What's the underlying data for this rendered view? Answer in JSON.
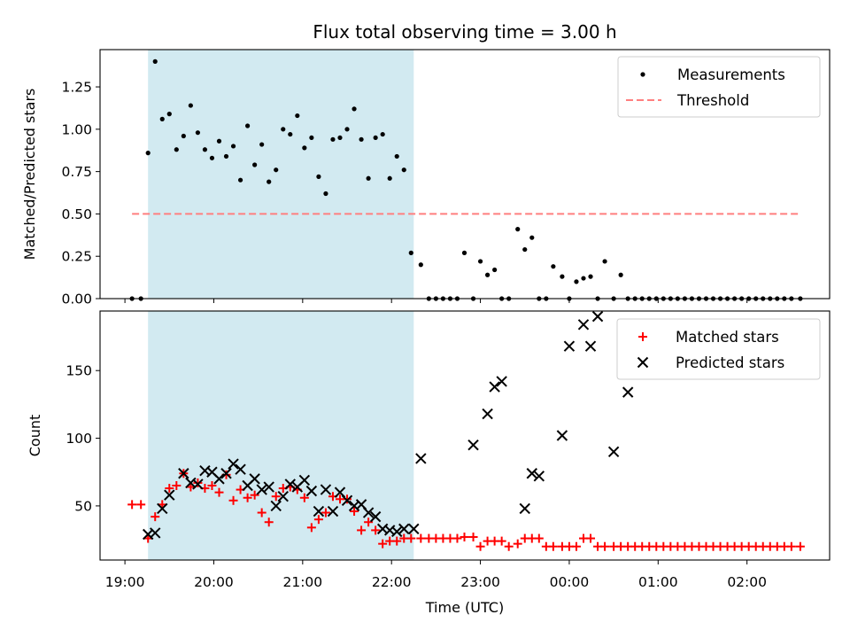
{
  "colors": {
    "measurement": "#000000",
    "threshold": "#ff7f7f",
    "matched": "#ff0000",
    "predicted": "#000000",
    "observing_window": "#add8e6"
  },
  "chart_data": [
    {
      "type": "scatter",
      "title": "Flux total observing time = 3.00 h",
      "xlabel": "",
      "ylabel": "Matched/Predicted stars",
      "ylim": [
        0,
        1.47
      ],
      "yticks": [
        "0.00",
        "0.25",
        "0.50",
        "0.75",
        "1.00",
        "1.25"
      ],
      "xlim": [
        -0.28,
        7.93
      ],
      "legend": {
        "placement": "top-right",
        "entries": [
          "Measurements",
          "Threshold"
        ]
      },
      "shaded_region": {
        "x": [
          0.26,
          3.25
        ]
      },
      "threshold": {
        "name": "Threshold",
        "y": 0.5,
        "x": [
          0.08,
          7.6
        ]
      },
      "series": [
        {
          "name": "Measurements",
          "x": [
            0.08,
            0.18,
            0.26,
            0.34,
            0.42,
            0.5,
            0.58,
            0.66,
            0.74,
            0.82,
            0.9,
            0.98,
            1.06,
            1.14,
            1.22,
            1.3,
            1.38,
            1.46,
            1.54,
            1.62,
            1.7,
            1.78,
            1.86,
            1.94,
            2.02,
            2.1,
            2.18,
            2.26,
            2.34,
            2.42,
            2.5,
            2.58,
            2.66,
            2.74,
            2.82,
            2.9,
            2.98,
            3.06,
            3.14,
            3.22,
            3.33,
            3.42,
            3.5,
            3.58,
            3.66,
            3.74,
            3.82,
            3.92,
            4.0,
            4.08,
            4.16,
            4.24,
            4.32,
            4.42,
            4.5,
            4.58,
            4.66,
            4.74,
            4.82,
            4.92,
            5.0,
            5.08,
            5.16,
            5.24,
            5.32,
            5.4,
            5.5,
            5.58,
            5.66,
            5.74,
            5.82,
            5.9,
            5.98,
            6.06,
            6.14,
            6.22,
            6.3,
            6.38,
            6.46,
            6.54,
            6.62,
            6.7,
            6.78,
            6.86,
            6.94,
            7.02,
            7.1,
            7.18,
            7.26,
            7.34,
            7.42,
            7.5,
            7.6
          ],
          "y": [
            0,
            0,
            0.86,
            1.4,
            1.06,
            1.09,
            0.88,
            0.96,
            1.14,
            0.98,
            0.88,
            0.83,
            0.93,
            0.84,
            0.9,
            0.7,
            1.02,
            0.79,
            0.91,
            0.69,
            0.76,
            1.0,
            0.97,
            1.08,
            0.89,
            0.95,
            0.72,
            0.62,
            0.94,
            0.95,
            1.0,
            1.12,
            0.94,
            0.71,
            0.95,
            0.97,
            0.71,
            0.84,
            0.76,
            0.27,
            0.2,
            0,
            0,
            0,
            0,
            0,
            0.27,
            0,
            0.22,
            0.14,
            0.17,
            0,
            0,
            0.41,
            0.29,
            0.36,
            0,
            0,
            0.19,
            0.13,
            0,
            0.1,
            0.12,
            0.13,
            0,
            0.22,
            0,
            0.14,
            0,
            0,
            0,
            0,
            0,
            0,
            0,
            0,
            0,
            0,
            0,
            0,
            0,
            0,
            0,
            0,
            0,
            0,
            0,
            0,
            0,
            0,
            0,
            0,
            0
          ]
        }
      ]
    },
    {
      "type": "scatter",
      "title": "",
      "xlabel": "Time (UTC)",
      "ylabel": "Count",
      "ylim": [
        10,
        194
      ],
      "yticks": [
        "50",
        "100",
        "150"
      ],
      "xlim": [
        -0.28,
        7.93
      ],
      "xticks": [
        "19:00",
        "20:00",
        "21:00",
        "22:00",
        "23:00",
        "00:00",
        "01:00",
        "02:00"
      ],
      "legend": {
        "placement": "top-right",
        "entries": [
          "Matched stars",
          "Predicted stars"
        ]
      },
      "shaded_region": {
        "x": [
          0.26,
          3.25
        ]
      },
      "series": [
        {
          "name": "Matched stars",
          "marker": "plus",
          "x": [
            0.08,
            0.18,
            0.26,
            0.34,
            0.42,
            0.5,
            0.58,
            0.66,
            0.74,
            0.82,
            0.9,
            0.98,
            1.06,
            1.14,
            1.22,
            1.3,
            1.38,
            1.46,
            1.54,
            1.62,
            1.7,
            1.78,
            1.86,
            1.94,
            2.02,
            2.1,
            2.18,
            2.26,
            2.34,
            2.42,
            2.5,
            2.58,
            2.66,
            2.74,
            2.82,
            2.9,
            2.98,
            3.06,
            3.14,
            3.22,
            3.33,
            3.42,
            3.5,
            3.58,
            3.66,
            3.74,
            3.82,
            3.92,
            4.0,
            4.08,
            4.16,
            4.24,
            4.32,
            4.42,
            4.5,
            4.58,
            4.66,
            4.74,
            4.82,
            4.92,
            5.0,
            5.08,
            5.16,
            5.24,
            5.32,
            5.4,
            5.5,
            5.58,
            5.66,
            5.74,
            5.82,
            5.9,
            5.98,
            6.06,
            6.14,
            6.22,
            6.3,
            6.38,
            6.46,
            6.54,
            6.62,
            6.7,
            6.78,
            6.86,
            6.94,
            7.02,
            7.1,
            7.18,
            7.26,
            7.34,
            7.42,
            7.5,
            7.6
          ],
          "y": [
            51,
            51,
            26,
            42,
            51,
            63,
            65,
            74,
            64,
            67,
            63,
            65,
            60,
            73,
            54,
            62,
            56,
            58,
            45,
            38,
            57,
            63,
            64,
            62,
            56,
            34,
            40,
            45,
            57,
            55,
            55,
            46,
            32,
            38,
            32,
            22,
            24,
            24,
            26,
            26,
            26,
            26,
            26,
            26,
            26,
            26,
            27,
            27,
            20,
            24,
            24,
            24,
            20,
            22,
            26,
            26,
            26,
            20,
            20,
            20,
            20,
            20,
            26,
            26,
            20,
            20,
            20,
            20,
            20,
            20,
            20,
            20,
            20,
            20,
            20,
            20,
            20,
            20,
            20,
            20,
            20,
            20,
            20,
            20,
            20,
            20,
            20,
            20,
            20,
            20,
            20,
            20,
            20
          ]
        },
        {
          "name": "Predicted stars",
          "marker": "x",
          "x": [
            0.26,
            0.34,
            0.42,
            0.5,
            0.66,
            0.74,
            0.82,
            0.9,
            0.98,
            1.06,
            1.14,
            1.22,
            1.3,
            1.38,
            1.46,
            1.54,
            1.62,
            1.7,
            1.78,
            1.86,
            1.94,
            2.02,
            2.1,
            2.18,
            2.26,
            2.34,
            2.42,
            2.5,
            2.58,
            2.66,
            2.74,
            2.82,
            2.9,
            2.98,
            3.06,
            3.14,
            3.25,
            3.33,
            3.92,
            4.08,
            4.16,
            4.24,
            4.5,
            4.58,
            4.66,
            4.92,
            5.0,
            5.16,
            5.24,
            5.32,
            5.5,
            5.66
          ],
          "y": [
            29,
            30,
            48,
            58,
            74,
            67,
            66,
            76,
            75,
            70,
            74,
            81,
            77,
            65,
            70,
            62,
            64,
            50,
            57,
            66,
            64,
            69,
            61,
            46,
            62,
            46,
            60,
            54,
            50,
            51,
            45,
            42,
            33,
            32,
            31,
            33,
            33,
            85,
            95,
            118,
            138,
            142,
            48,
            74,
            72,
            102,
            168,
            184,
            168,
            190,
            90,
            134
          ]
        }
      ]
    }
  ]
}
